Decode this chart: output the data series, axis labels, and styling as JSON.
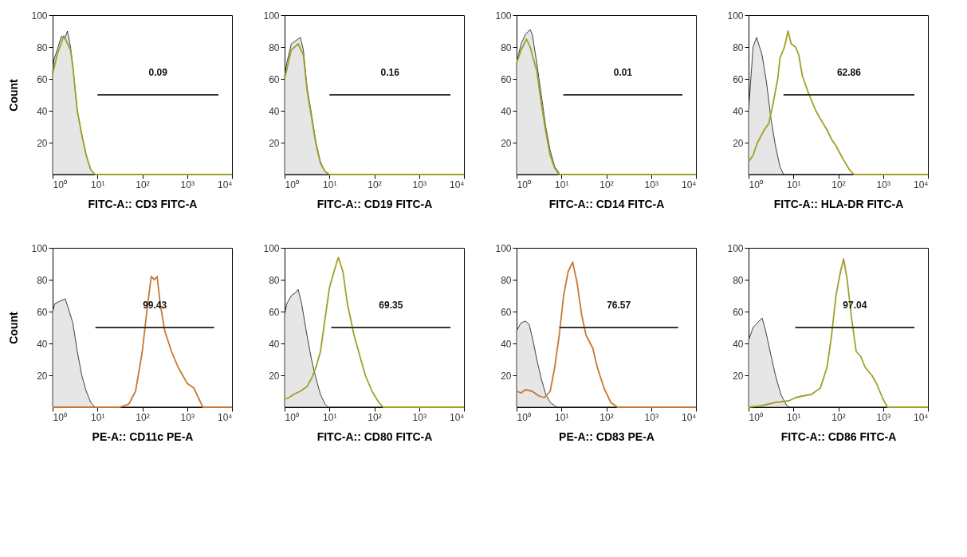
{
  "chart_data": [
    {
      "type": "area",
      "xlabel": "FITC-A:: CD3 FITC-A",
      "ylabel": "Count",
      "log": "x",
      "grid": false,
      "xlim": [
        1,
        10000
      ],
      "xticks": [
        {
          "value": 1,
          "label": "10⁰"
        },
        {
          "value": 10,
          "label": "10¹"
        },
        {
          "value": 100,
          "label": "10²"
        },
        {
          "value": 1000,
          "label": "10³"
        },
        {
          "value": 10000,
          "label": "10⁴"
        }
      ],
      "ylim": [
        0,
        100
      ],
      "yticks": [
        20,
        40,
        60,
        80,
        100
      ],
      "series": [
        {
          "color": "#e6e6e6",
          "x": [
            1,
            1.07,
            1.26,
            1.58,
            1.86,
            2.14,
            2.51,
            2.82,
            3.55,
            4.47,
            5.62,
            7.08,
            8.91,
            10000
          ],
          "values": [
            65,
            72,
            78,
            87,
            85,
            90,
            80,
            68,
            40,
            25,
            12,
            3,
            0,
            0
          ]
        },
        {
          "type": "line",
          "color": "#a0a028",
          "x": [
            1,
            1.26,
            1.78,
            2.0,
            2.51,
            2.82,
            3.55,
            4.47,
            5.62,
            7.08,
            8.91,
            10000
          ],
          "values": [
            63,
            75,
            87,
            84,
            78,
            68,
            40,
            25,
            12,
            3,
            0,
            0
          ]
        },
        {
          "type": "line",
          "name": "0.09",
          "color": "#333333",
          "x": [
            10,
            5000
          ],
          "values": [
            50,
            50
          ]
        }
      ]
    },
    {
      "type": "area",
      "xlabel": "FITC-A:: CD19 FITC-A",
      "log": "x",
      "grid": false,
      "xlim": [
        1,
        10000
      ],
      "xticks": [
        {
          "value": 1,
          "label": "10⁰"
        },
        {
          "value": 10,
          "label": "10¹"
        },
        {
          "value": 100,
          "label": "10²"
        },
        {
          "value": 1000,
          "label": "10³"
        },
        {
          "value": 10000,
          "label": "10⁴"
        }
      ],
      "ylim": [
        0,
        100
      ],
      "yticks": [
        20,
        40,
        60,
        80,
        100
      ],
      "series": [
        {
          "color": "#e6e6e6",
          "x": [
            1,
            1.12,
            1.41,
            2.0,
            2.24,
            2.63,
            3.16,
            3.98,
            5.01,
            6.31,
            7.94,
            10,
            10000
          ],
          "values": [
            62,
            70,
            82,
            85,
            86,
            78,
            55,
            38,
            20,
            8,
            2,
            0,
            0
          ]
        },
        {
          "type": "line",
          "color": "#a0a028",
          "x": [
            1,
            1.41,
            2.0,
            2.63,
            3.16,
            3.98,
            5.01,
            6.31,
            7.94,
            10,
            10000
          ],
          "values": [
            60,
            78,
            82,
            75,
            53,
            36,
            19,
            7,
            2,
            0,
            0
          ]
        },
        {
          "type": "line",
          "name": "0.16",
          "color": "#333333",
          "x": [
            10,
            5000
          ],
          "values": [
            50,
            50
          ]
        }
      ]
    },
    {
      "type": "area",
      "xlabel": "FITC-A:: CD14 FITC-A",
      "log": "x",
      "grid": false,
      "xlim": [
        1,
        10000
      ],
      "xticks": [
        {
          "value": 1,
          "label": "10⁰"
        },
        {
          "value": 10,
          "label": "10¹"
        },
        {
          "value": 100,
          "label": "10²"
        },
        {
          "value": 1000,
          "label": "10³"
        },
        {
          "value": 10000,
          "label": "10⁴"
        }
      ],
      "ylim": [
        0,
        100
      ],
      "yticks": [
        20,
        40,
        60,
        80,
        100
      ],
      "series": [
        {
          "color": "#e6e6e6",
          "x": [
            1,
            1.26,
            1.58,
            2.0,
            2.24,
            2.82,
            3.55,
            4.47,
            5.62,
            7.08,
            9.33,
            10000
          ],
          "values": [
            70,
            82,
            88,
            91,
            88,
            70,
            50,
            30,
            15,
            5,
            0,
            0
          ]
        },
        {
          "type": "line",
          "color": "#a0a028",
          "x": [
            1,
            1.26,
            1.66,
            2.0,
            2.82,
            3.55,
            4.47,
            5.62,
            7.08,
            8.91,
            10000
          ],
          "values": [
            70,
            78,
            85,
            80,
            65,
            45,
            27,
            12,
            4,
            0,
            0
          ]
        },
        {
          "type": "line",
          "name": "0.01",
          "color": "#333333",
          "x": [
            11,
            5000
          ],
          "values": [
            50,
            50
          ]
        }
      ]
    },
    {
      "type": "area",
      "xlabel": "FITC-A:: HLA-DR FITC-A",
      "log": "x",
      "grid": false,
      "xlim": [
        1,
        10000
      ],
      "xticks": [
        {
          "value": 1,
          "label": "10⁰"
        },
        {
          "value": 10,
          "label": "10¹"
        },
        {
          "value": 100,
          "label": "10²"
        },
        {
          "value": 1000,
          "label": "10³"
        },
        {
          "value": 10000,
          "label": "10⁴"
        }
      ],
      "ylim": [
        0,
        100
      ],
      "yticks": [
        20,
        40,
        60,
        80,
        100
      ],
      "series": [
        {
          "color": "#e6e6e6",
          "x": [
            1,
            1.26,
            1.51,
            2.0,
            2.51,
            3.16,
            3.98,
            5.01,
            6.03,
            10000
          ],
          "values": [
            40,
            80,
            86,
            75,
            58,
            35,
            18,
            5,
            0,
            0
          ]
        },
        {
          "type": "line",
          "color": "#a0a028",
          "x": [
            1,
            1.26,
            1.58,
            2.24,
            2.82,
            3.55,
            4.47,
            5.01,
            6.31,
            7.59,
            8.91,
            11.2,
            13.2,
            15.8,
            22.4,
            31.6,
            39.8,
            56.2,
            70.8,
            89.1,
            126,
            178,
            224,
            10000
          ],
          "values": [
            8,
            12,
            20,
            28,
            32,
            45,
            60,
            73,
            80,
            90,
            82,
            80,
            75,
            62,
            50,
            40,
            35,
            28,
            22,
            18,
            10,
            3,
            0,
            0
          ]
        },
        {
          "type": "line",
          "name": "62.86",
          "color": "#333333",
          "x": [
            6,
            5000
          ],
          "values": [
            50,
            50
          ]
        }
      ]
    },
    {
      "type": "area",
      "xlabel": "PE-A:: CD11c PE-A",
      "ylabel": "Count",
      "log": "x",
      "grid": false,
      "xlim": [
        1,
        10000
      ],
      "xticks": [
        {
          "value": 1,
          "label": "10⁰"
        },
        {
          "value": 10,
          "label": "10¹"
        },
        {
          "value": 100,
          "label": "10²"
        },
        {
          "value": 1000,
          "label": "10³"
        },
        {
          "value": 10000,
          "label": "10⁴"
        }
      ],
      "ylim": [
        0,
        100
      ],
      "yticks": [
        20,
        40,
        60,
        80,
        100
      ],
      "series": [
        {
          "color": "#e6e6e6",
          "x": [
            1,
            1.12,
            1.58,
            1.91,
            2.24,
            2.82,
            3.55,
            4.47,
            5.62,
            7.08,
            8.91,
            10000
          ],
          "values": [
            60,
            65,
            67,
            68,
            62,
            53,
            35,
            20,
            10,
            3,
            0,
            0
          ]
        },
        {
          "type": "line",
          "color": "#c87832",
          "x": [
            1,
            31.6,
            50.1,
            70.8,
            100,
            126,
            158,
            186,
            214,
            251,
            316,
            447,
            631,
            1000,
            1413,
            1995,
            2239,
            10000
          ],
          "values": [
            0,
            0,
            2,
            10,
            35,
            60,
            82,
            80,
            82,
            65,
            48,
            35,
            25,
            15,
            12,
            3,
            0,
            0
          ]
        },
        {
          "type": "line",
          "name": "99.43",
          "color": "#333333",
          "x": [
            9,
            4000
          ],
          "values": [
            50,
            50
          ]
        }
      ]
    },
    {
      "type": "area",
      "xlabel": "FITC-A:: CD80 FITC-A",
      "log": "x",
      "grid": false,
      "xlim": [
        1,
        10000
      ],
      "xticks": [
        {
          "value": 1,
          "label": "10⁰"
        },
        {
          "value": 10,
          "label": "10¹"
        },
        {
          "value": 100,
          "label": "10²"
        },
        {
          "value": 1000,
          "label": "10³"
        },
        {
          "value": 10000,
          "label": "10⁴"
        }
      ],
      "ylim": [
        0,
        100
      ],
      "yticks": [
        20,
        40,
        60,
        80,
        100
      ],
      "series": [
        {
          "color": "#e6e6e6",
          "x": [
            1,
            1.12,
            1.41,
            1.78,
            2.0,
            2.4,
            3.16,
            3.98,
            5.01,
            6.31,
            7.94,
            9.33,
            10000
          ],
          "values": [
            58,
            65,
            70,
            72,
            74,
            65,
            45,
            30,
            18,
            8,
            2,
            0,
            0
          ]
        },
        {
          "type": "line",
          "color": "#a0a028",
          "x": [
            1,
            1.26,
            1.58,
            2.24,
            3.16,
            3.98,
            5.01,
            6.31,
            7.94,
            10,
            12.6,
            15.8,
            20,
            25.1,
            35.5,
            50.1,
            63.1,
            89.1,
            126,
            158,
            10000
          ],
          "values": [
            5,
            6,
            8,
            10,
            13,
            18,
            25,
            35,
            55,
            75,
            85,
            94,
            85,
            65,
            45,
            30,
            20,
            10,
            3,
            0,
            0
          ]
        },
        {
          "type": "line",
          "name": "69.35",
          "color": "#333333",
          "x": [
            11,
            5000
          ],
          "values": [
            50,
            50
          ]
        }
      ]
    },
    {
      "type": "area",
      "xlabel": "PE-A:: CD83 PE-A",
      "log": "x",
      "grid": false,
      "xlim": [
        1,
        10000
      ],
      "xticks": [
        {
          "value": 1,
          "label": "10⁰"
        },
        {
          "value": 10,
          "label": "10¹"
        },
        {
          "value": 100,
          "label": "10²"
        },
        {
          "value": 1000,
          "label": "10³"
        },
        {
          "value": 10000,
          "label": "10⁴"
        }
      ],
      "ylim": [
        0,
        100
      ],
      "yticks": [
        20,
        40,
        60,
        80,
        100
      ],
      "series": [
        {
          "color": "#e6e6e6",
          "x": [
            1,
            1.26,
            1.58,
            1.91,
            2.4,
            2.82,
            3.55,
            4.47,
            5.62,
            7.94,
            10000
          ],
          "values": [
            48,
            53,
            54,
            52,
            40,
            30,
            18,
            8,
            3,
            0,
            0
          ]
        },
        {
          "type": "line",
          "color": "#c87832",
          "x": [
            1,
            1.26,
            1.58,
            2.24,
            3.16,
            4.17,
            5.62,
            7.08,
            8.91,
            11.2,
            14.1,
            17.8,
            22.4,
            28.2,
            35.5,
            50.1,
            63.1,
            89.1,
            126,
            178,
            10000
          ],
          "values": [
            10,
            9,
            11,
            10,
            7,
            6,
            10,
            25,
            45,
            70,
            85,
            91,
            78,
            58,
            45,
            37,
            25,
            12,
            3,
            0,
            0
          ]
        },
        {
          "type": "line",
          "name": "76.57",
          "color": "#333333",
          "x": [
            9,
            4000
          ],
          "values": [
            50,
            50
          ]
        }
      ]
    },
    {
      "type": "area",
      "xlabel": "FITC-A:: CD86 FITC-A",
      "log": "x",
      "grid": false,
      "xlim": [
        1,
        10000
      ],
      "xticks": [
        {
          "value": 1,
          "label": "10⁰"
        },
        {
          "value": 10,
          "label": "10¹"
        },
        {
          "value": 100,
          "label": "10²"
        },
        {
          "value": 1000,
          "label": "10³"
        },
        {
          "value": 10000,
          "label": "10⁴"
        }
      ],
      "ylim": [
        0,
        100
      ],
      "yticks": [
        20,
        40,
        60,
        80,
        100
      ],
      "series": [
        {
          "color": "#e6e6e6",
          "x": [
            1,
            1.26,
            1.58,
            2.0,
            2.4,
            3.02,
            3.98,
            5.25,
            7.08,
            8.32,
            10000
          ],
          "values": [
            42,
            50,
            53,
            56,
            48,
            35,
            20,
            8,
            1,
            0,
            0
          ]
        },
        {
          "type": "line",
          "color": "#a0a028",
          "x": [
            1,
            2.0,
            3.98,
            7.94,
            11.2,
            15.8,
            25.1,
            39.8,
            56.2,
            70.8,
            89.1,
            112,
            132,
            158,
            200,
            251,
            316,
            398,
            562,
            708,
            1000,
            1259,
            10000
          ],
          "values": [
            0,
            1,
            3,
            4,
            6,
            7,
            8,
            12,
            25,
            45,
            70,
            85,
            93,
            80,
            55,
            35,
            32,
            25,
            20,
            15,
            5,
            0,
            0
          ]
        },
        {
          "type": "line",
          "name": "97.04",
          "color": "#333333",
          "x": [
            11,
            5000
          ],
          "values": [
            50,
            50
          ]
        }
      ]
    }
  ]
}
